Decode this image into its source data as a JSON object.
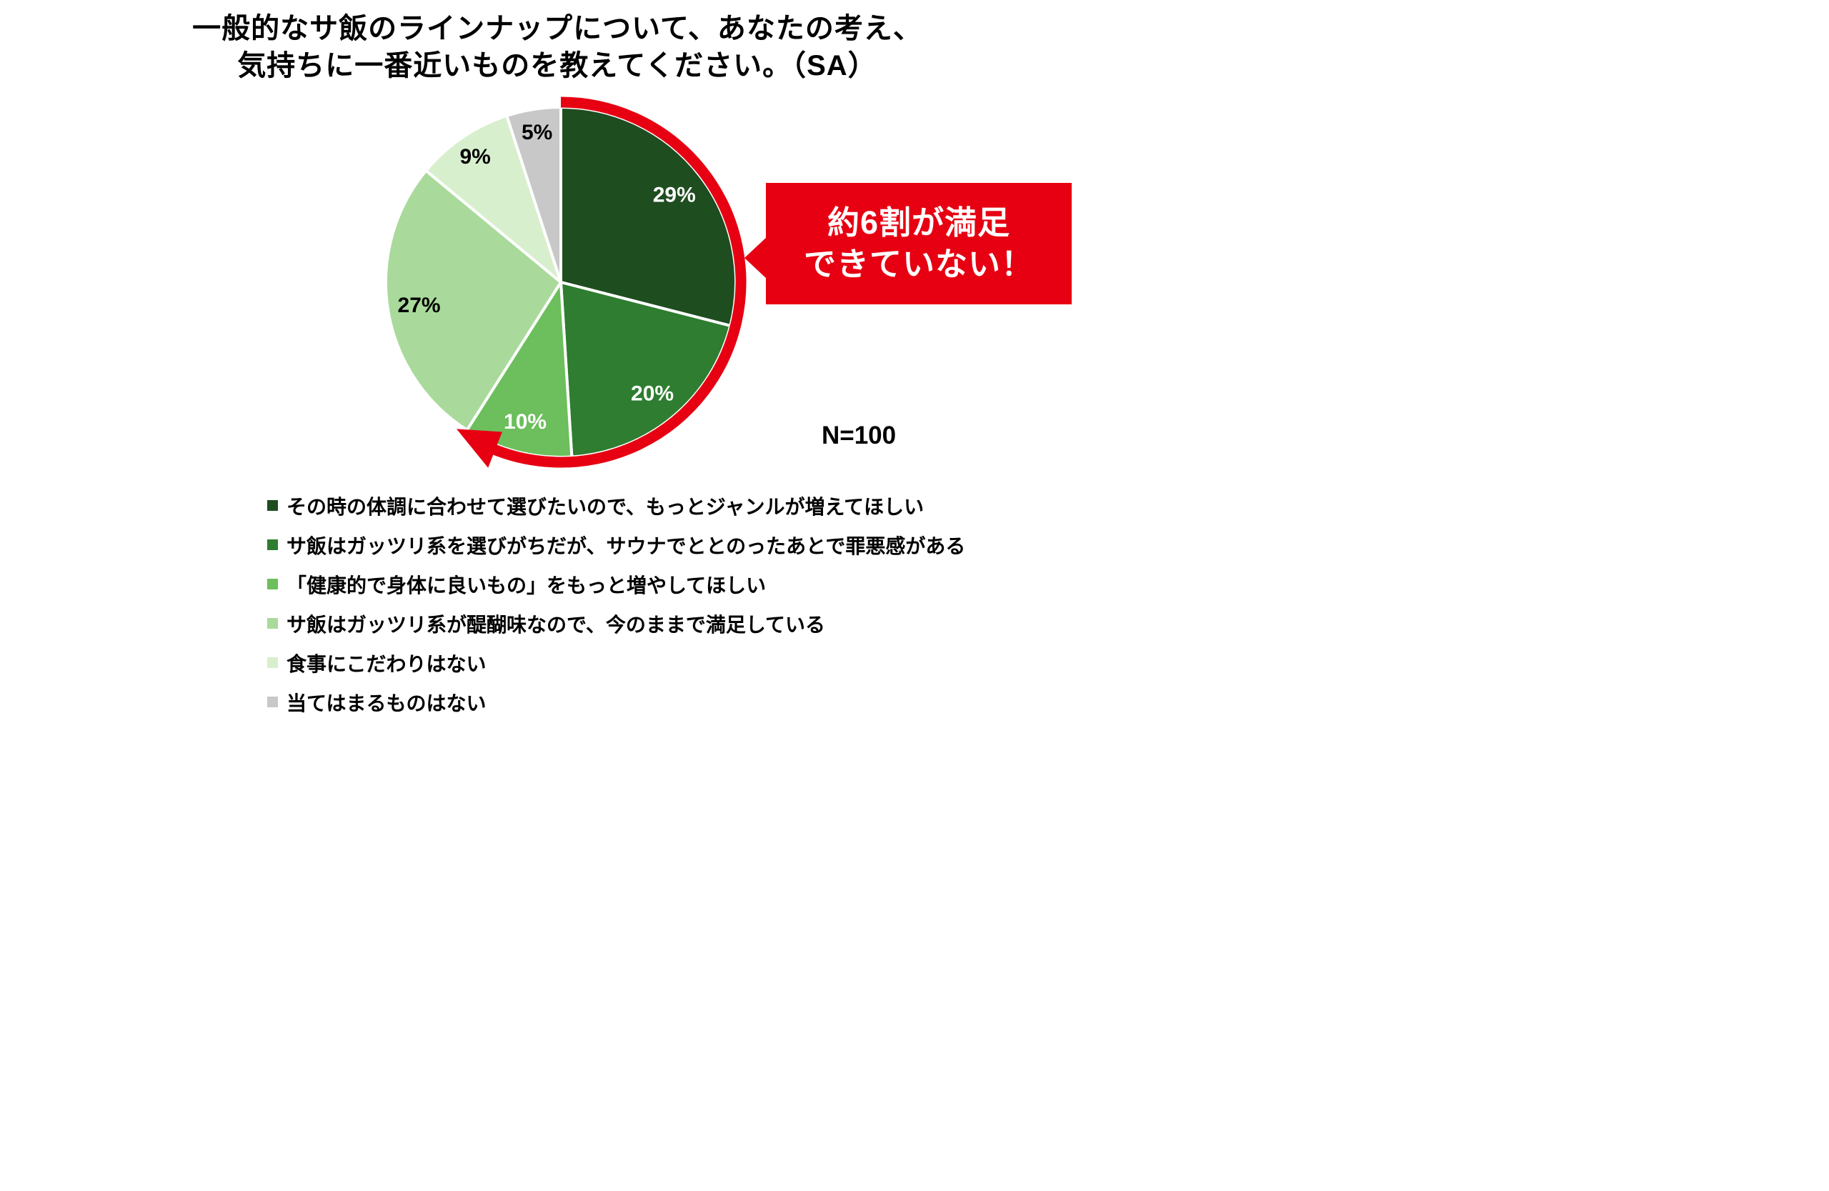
{
  "title": {
    "line1": "一般的なサ飯のラインナップについて、あなたの考え、",
    "line2": "気持ちに一番近いものを教えてください。（SA）"
  },
  "callout": {
    "line1": "約6割が満足",
    "line2": "できていない！",
    "color": "#e60012"
  },
  "n_label": "N=100",
  "chart_data": {
    "type": "pie",
    "title": "一般的なサ飯のラインナップについて、あなたの考え、気持ちに一番近いものを教えてください。（SA）",
    "sample_size_label": "N=100",
    "start_angle_deg": 0,
    "direction": "clockwise",
    "units": "%",
    "legend_position": "bottom-left",
    "slices": [
      {
        "label": "その時の体調に合わせて選びたいので、もっとジャンルが増えてほしい",
        "value": 29,
        "color": "#1e4d20",
        "text_color": "#ffffff"
      },
      {
        "label": "サ飯はガッツリ系を選びがちだが、サウナでととのったあとで罪悪感がある",
        "value": 20,
        "color": "#2e7d30",
        "text_color": "#ffffff"
      },
      {
        "label": "「健康的で身体に良いもの」をもっと増やしてほしい",
        "value": 10,
        "color": "#6cbf5c",
        "text_color": "#ffffff"
      },
      {
        "label": "サ飯はガッツリ系が醍醐味なので、今のままで満足している",
        "value": 27,
        "color": "#a9da9b",
        "text_color": "#000000"
      },
      {
        "label": "食事にこだわりはない",
        "value": 9,
        "color": "#d8efcd",
        "text_color": "#000000"
      },
      {
        "label": "当てはまるものはない",
        "value": 5,
        "color": "#c8c8c8",
        "text_color": "#000000"
      }
    ],
    "highlight_arc": {
      "covers_slices": 3,
      "total_percent": 59,
      "color": "#e60012",
      "annotation": "約6割が満足できていない！"
    }
  }
}
